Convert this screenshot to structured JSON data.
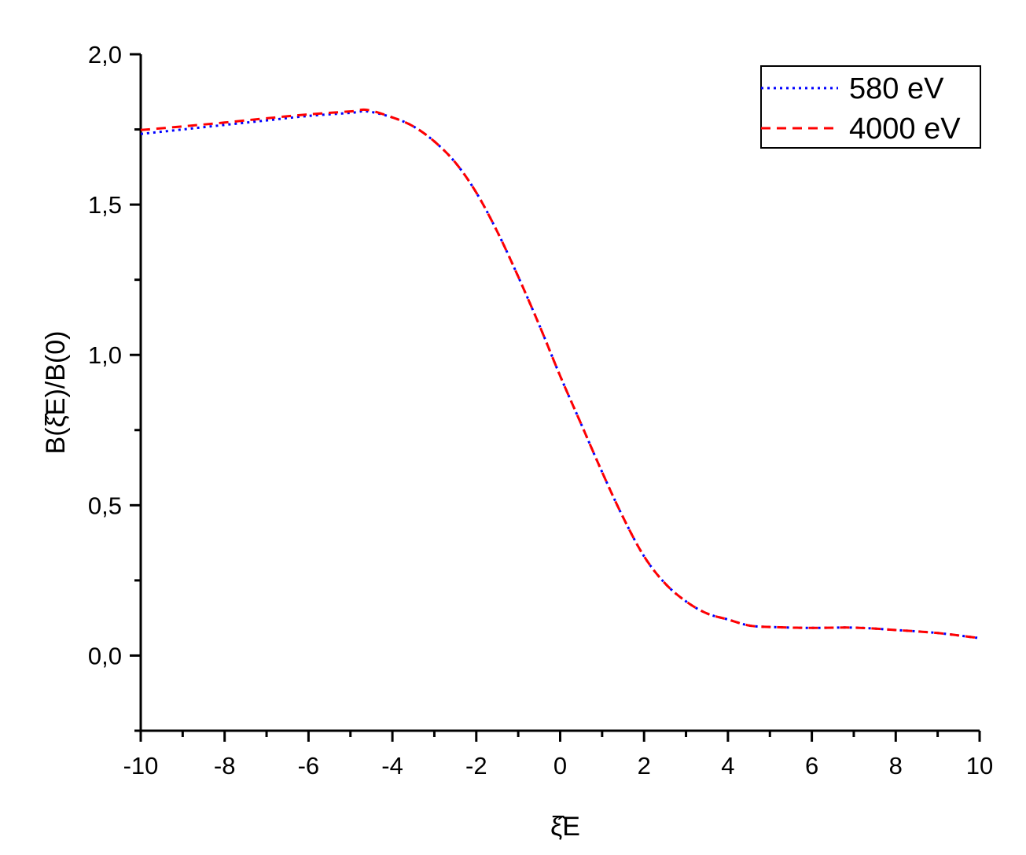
{
  "chart_data": {
    "type": "line",
    "title": "",
    "xlabel": "ξ̂E",
    "ylabel": "B(ξ̂E)/B(0)",
    "xlim": [
      -10,
      10
    ],
    "ylim": [
      -0.25,
      2.0
    ],
    "x_ticks": [
      "-10",
      "-8",
      "-6",
      "-4",
      "-2",
      "0",
      "2",
      "4",
      "6",
      "8",
      "10"
    ],
    "y_ticks": [
      "0,0",
      "0,5",
      "1,0",
      "1,5",
      "2,0"
    ],
    "grid": false,
    "legend_position": "top-right",
    "series": [
      {
        "name": "580 eV",
        "color": "#0000ff",
        "style": "dotted",
        "x": [
          -10,
          -9,
          -8,
          -7,
          -6,
          -5,
          -4.6,
          -4,
          -3.5,
          -3,
          -2.5,
          -2,
          -1.5,
          -1,
          -0.5,
          0,
          0.5,
          1,
          1.5,
          2,
          2.5,
          3,
          3.5,
          4,
          4.5,
          5,
          6,
          7,
          8,
          9,
          10
        ],
        "y": [
          1.735,
          1.75,
          1.765,
          1.78,
          1.795,
          1.805,
          1.81,
          1.79,
          1.76,
          1.71,
          1.64,
          1.54,
          1.41,
          1.26,
          1.1,
          0.93,
          0.77,
          0.61,
          0.46,
          0.33,
          0.24,
          0.18,
          0.14,
          0.12,
          0.1,
          0.095,
          0.092,
          0.093,
          0.085,
          0.075,
          0.058
        ]
      },
      {
        "name": "4000 eV",
        "color": "#ff0000",
        "style": "dashed",
        "x": [
          -10,
          -9,
          -8,
          -7,
          -6,
          -5,
          -4.6,
          -4,
          -3.5,
          -3,
          -2.5,
          -2,
          -1.5,
          -1,
          -0.5,
          0,
          0.5,
          1,
          1.5,
          2,
          2.5,
          3,
          3.5,
          4,
          4.5,
          5,
          6,
          7,
          8,
          9,
          10
        ],
        "y": [
          1.748,
          1.76,
          1.773,
          1.787,
          1.8,
          1.81,
          1.815,
          1.79,
          1.76,
          1.71,
          1.64,
          1.54,
          1.41,
          1.26,
          1.1,
          0.93,
          0.77,
          0.61,
          0.46,
          0.33,
          0.24,
          0.18,
          0.14,
          0.12,
          0.1,
          0.095,
          0.092,
          0.093,
          0.085,
          0.075,
          0.058
        ]
      }
    ]
  }
}
